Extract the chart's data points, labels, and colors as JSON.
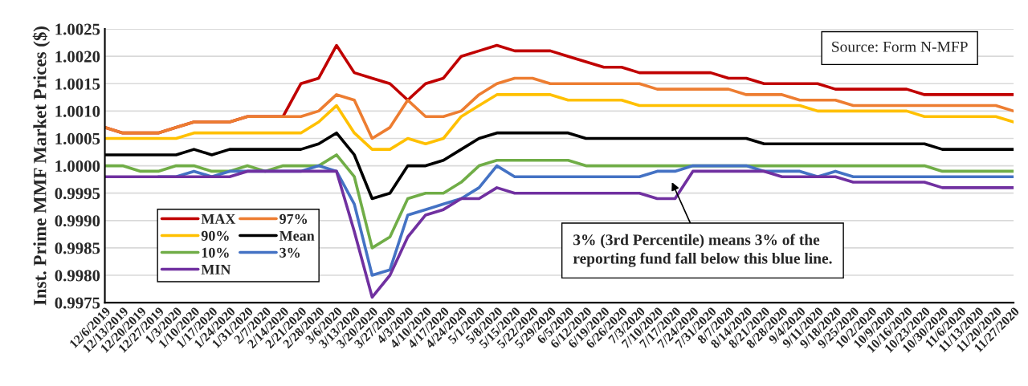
{
  "chart_data": {
    "type": "line",
    "ylabel": "Inst. Prime MMF Market Prices ($)",
    "categories": [
      "12/6/2019",
      "12/13/2019",
      "12/20/2019",
      "12/27/2019",
      "1/3/2020",
      "1/10/2020",
      "1/17/2020",
      "1/24/2020",
      "1/31/2020",
      "2/7/2020",
      "2/14/2020",
      "2/21/2020",
      "2/28/2020",
      "3/6/2020",
      "3/13/2020",
      "3/20/2020",
      "3/27/2020",
      "4/3/2020",
      "4/10/2020",
      "4/17/2020",
      "4/24/2020",
      "5/1/2020",
      "5/8/2020",
      "5/15/2020",
      "5/22/2020",
      "5/29/2020",
      "6/5/2020",
      "6/12/2020",
      "6/19/2020",
      "6/26/2020",
      "7/3/2020",
      "7/10/2020",
      "7/17/2020",
      "7/24/2020",
      "7/31/2020",
      "8/7/2020",
      "8/14/2020",
      "8/21/2020",
      "8/28/2020",
      "9/4/2020",
      "9/11/2020",
      "9/18/2020",
      "9/25/2020",
      "10/2/2020",
      "10/9/2020",
      "10/16/2020",
      "10/23/2020",
      "10/30/2020",
      "11/6/2020",
      "11/13/2020",
      "11/20/2020",
      "11/27/2020"
    ],
    "series": [
      {
        "name": "MAX",
        "color": "#c00000",
        "values": [
          1.0007,
          1.0006,
          1.0006,
          1.0006,
          1.0007,
          1.0008,
          1.0008,
          1.0008,
          1.0009,
          1.0009,
          1.0009,
          1.0015,
          1.0016,
          1.0022,
          1.0017,
          1.0016,
          1.0015,
          1.0012,
          1.0015,
          1.0016,
          1.002,
          1.0021,
          1.0022,
          1.0021,
          1.0021,
          1.0021,
          1.002,
          1.0019,
          1.0018,
          1.0018,
          1.0017,
          1.0017,
          1.0017,
          1.0017,
          1.0017,
          1.0016,
          1.0016,
          1.0015,
          1.0015,
          1.0015,
          1.0015,
          1.0014,
          1.0014,
          1.0014,
          1.0014,
          1.0014,
          1.0013,
          1.0013,
          1.0013,
          1.0013,
          1.0013,
          1.0013
        ]
      },
      {
        "name": "97%",
        "color": "#ed7d31",
        "values": [
          1.0007,
          1.0006,
          1.0006,
          1.0006,
          1.0007,
          1.0008,
          1.0008,
          1.0008,
          1.0009,
          1.0009,
          1.0009,
          1.0009,
          1.001,
          1.0013,
          1.0012,
          1.0005,
          1.0007,
          1.0012,
          1.0009,
          1.0009,
          1.001,
          1.0013,
          1.0015,
          1.0016,
          1.0016,
          1.0015,
          1.0015,
          1.0015,
          1.0015,
          1.0015,
          1.0015,
          1.0014,
          1.0014,
          1.0014,
          1.0014,
          1.0014,
          1.0013,
          1.0013,
          1.0013,
          1.0012,
          1.0012,
          1.0012,
          1.0011,
          1.0011,
          1.0011,
          1.0011,
          1.0011,
          1.0011,
          1.0011,
          1.0011,
          1.0011,
          1.001
        ]
      },
      {
        "name": "90%",
        "color": "#ffc000",
        "values": [
          1.0005,
          1.0005,
          1.0005,
          1.0005,
          1.0005,
          1.0006,
          1.0006,
          1.0006,
          1.0006,
          1.0006,
          1.0006,
          1.0006,
          1.0008,
          1.0011,
          1.0006,
          1.0003,
          1.0003,
          1.0005,
          1.0004,
          1.0005,
          1.0009,
          1.0011,
          1.0013,
          1.0013,
          1.0013,
          1.0013,
          1.0012,
          1.0012,
          1.0012,
          1.0012,
          1.0011,
          1.0011,
          1.0011,
          1.0011,
          1.0011,
          1.0011,
          1.0011,
          1.0011,
          1.0011,
          1.0011,
          1.001,
          1.001,
          1.001,
          1.001,
          1.001,
          1.001,
          1.0009,
          1.0009,
          1.0009,
          1.0009,
          1.0009,
          1.0008
        ]
      },
      {
        "name": "Mean",
        "color": "#000000",
        "values": [
          1.0002,
          1.0002,
          1.0002,
          1.0002,
          1.0002,
          1.0003,
          1.0002,
          1.0003,
          1.0003,
          1.0003,
          1.0003,
          1.0003,
          1.0004,
          1.0006,
          1.0002,
          0.9994,
          0.9995,
          1.0,
          1.0,
          1.0001,
          1.0003,
          1.0005,
          1.0006,
          1.0006,
          1.0006,
          1.0006,
          1.0006,
          1.0005,
          1.0005,
          1.0005,
          1.0005,
          1.0005,
          1.0005,
          1.0005,
          1.0005,
          1.0005,
          1.0005,
          1.0004,
          1.0004,
          1.0004,
          1.0004,
          1.0004,
          1.0004,
          1.0004,
          1.0004,
          1.0004,
          1.0004,
          1.0003,
          1.0003,
          1.0003,
          1.0003,
          1.0003
        ]
      },
      {
        "name": "10%",
        "color": "#70ad47",
        "values": [
          1.0,
          1.0,
          0.9999,
          0.9999,
          1.0,
          1.0,
          0.9999,
          0.9999,
          1.0,
          0.9999,
          1.0,
          1.0,
          1.0,
          1.0002,
          0.9998,
          0.9985,
          0.9987,
          0.9994,
          0.9995,
          0.9995,
          0.9997,
          1.0,
          1.0001,
          1.0001,
          1.0001,
          1.0001,
          1.0001,
          1.0,
          1.0,
          1.0,
          1.0,
          1.0,
          1.0,
          1.0,
          1.0,
          1.0,
          1.0,
          1.0,
          1.0,
          1.0,
          1.0,
          1.0,
          1.0,
          1.0,
          1.0,
          1.0,
          1.0,
          0.9999,
          0.9999,
          0.9999,
          0.9999,
          0.9999
        ]
      },
      {
        "name": "3%",
        "color": "#4472c4",
        "values": [
          null,
          null,
          null,
          0.9998,
          0.9998,
          0.9999,
          0.9998,
          0.9999,
          0.9999,
          0.9999,
          0.9999,
          0.9999,
          1.0,
          0.9999,
          0.9993,
          0.998,
          0.9981,
          0.9991,
          0.9992,
          0.9993,
          0.9994,
          0.9996,
          1.0,
          0.9998,
          0.9998,
          0.9998,
          0.9998,
          0.9998,
          0.9998,
          0.9998,
          0.9998,
          0.9999,
          0.9999,
          1.0,
          1.0,
          1.0,
          1.0,
          0.9999,
          0.9999,
          0.9999,
          0.9998,
          0.9999,
          0.9998,
          0.9998,
          0.9998,
          0.9998,
          0.9998,
          0.9998,
          0.9998,
          0.9998,
          0.9998,
          0.9998
        ]
      },
      {
        "name": "MIN",
        "color": "#7030a0",
        "values": [
          0.9998,
          0.9998,
          0.9998,
          0.9998,
          0.9998,
          0.9998,
          0.9998,
          0.9998,
          0.9999,
          0.9999,
          0.9999,
          0.9999,
          0.9999,
          0.9999,
          0.9988,
          0.9976,
          0.998,
          0.9987,
          0.9991,
          0.9992,
          0.9994,
          0.9994,
          0.9996,
          0.9995,
          0.9995,
          0.9995,
          0.9995,
          0.9995,
          0.9995,
          0.9995,
          0.9995,
          0.9994,
          0.9994,
          0.9999,
          0.9999,
          0.9999,
          0.9999,
          0.9999,
          0.9998,
          0.9998,
          0.9998,
          0.9998,
          0.9997,
          0.9997,
          0.9997,
          0.9997,
          0.9997,
          0.9996,
          0.9996,
          0.9996,
          0.9996,
          0.9996
        ]
      }
    ],
    "ylim": [
      0.9975,
      1.0025
    ],
    "yticks": [
      {
        "value": 0.9975,
        "label": "0.9975"
      },
      {
        "value": 0.998,
        "label": "0.9980"
      },
      {
        "value": 0.9985,
        "label": "0.9985"
      },
      {
        "value": 0.999,
        "label": "0.9990"
      },
      {
        "value": 0.9995,
        "label": "0.9995"
      },
      {
        "value": 1.0,
        "label": "1.0000"
      },
      {
        "value": 1.0005,
        "label": "1.0005"
      },
      {
        "value": 1.001,
        "label": "1.0010"
      },
      {
        "value": 1.0015,
        "label": "1.0015"
      },
      {
        "value": 1.002,
        "label": "1.0020"
      },
      {
        "value": 1.0025,
        "label": "1.0025"
      }
    ],
    "grid": "y",
    "legend": "bottom left",
    "marker": "none",
    "line_style": "solid",
    "annotations": [
      "Source: Form N-MFP",
      "3% (3rd Percentile) means 3% of the\nreporting fund fall below this blue line."
    ]
  }
}
